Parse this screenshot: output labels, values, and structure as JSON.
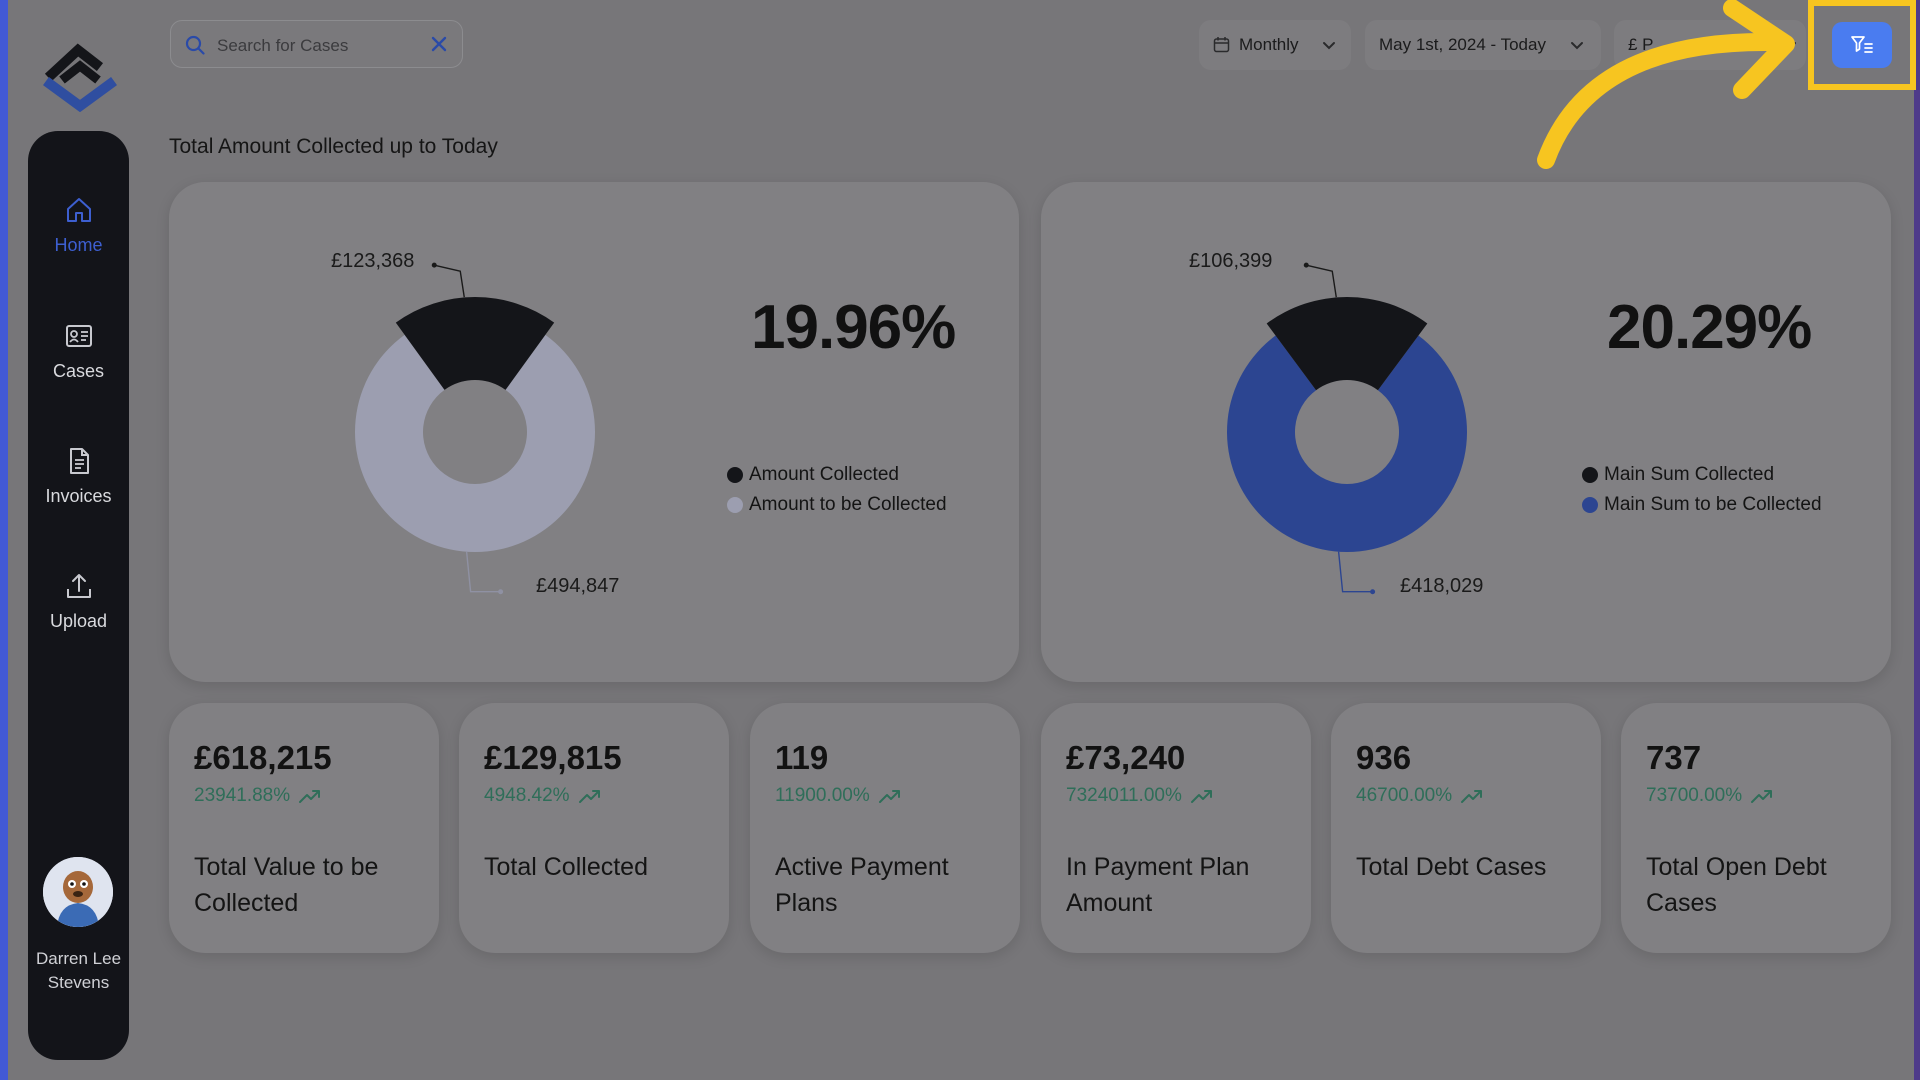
{
  "sidebar": {
    "items": [
      {
        "label": "Home",
        "icon": "home-icon",
        "active": true
      },
      {
        "label": "Cases",
        "icon": "id-card-icon"
      },
      {
        "label": "Invoices",
        "icon": "document-icon"
      },
      {
        "label": "Upload",
        "icon": "upload-icon"
      }
    ],
    "user": {
      "name": "Darren Lee Stevens"
    }
  },
  "header": {
    "search_placeholder": "Search for Cases",
    "period": "Monthly",
    "date_range": "May 1st, 2024 - Today",
    "currency": "£ P"
  },
  "section_title": "Total Amount Collected up to Today",
  "charts": [
    {
      "percent": "19.96%",
      "top_label": "£123,368",
      "bottom_label": "£494,847",
      "legend": [
        "Amount Collected",
        "Amount to be Collected"
      ],
      "colors": {
        "collected": "#141519",
        "remaining": "#9c9eb0"
      }
    },
    {
      "percent": "20.29%",
      "top_label": "£106,399",
      "bottom_label": "£418,029",
      "legend": [
        "Main Sum Collected",
        "Main Sum to be Collected"
      ],
      "colors": {
        "collected": "#141519",
        "remaining": "#2c4591"
      }
    }
  ],
  "chart_data": [
    {
      "type": "pie",
      "categories": [
        "Amount Collected",
        "Amount to be Collected"
      ],
      "values": [
        123368,
        494847
      ]
    },
    {
      "type": "pie",
      "categories": [
        "Main Sum Collected",
        "Main Sum to be Collected"
      ],
      "values": [
        106399,
        418029
      ]
    }
  ],
  "stats": [
    {
      "value": "£618,215",
      "change": "23941.88%",
      "label": "Total Value to be Collected"
    },
    {
      "value": "£129,815",
      "change": "4948.42%",
      "label": "Total Collected"
    },
    {
      "value": "119",
      "change": "11900.00%",
      "label": "Active Payment Plans"
    },
    {
      "value": "£73,240",
      "change": "7324011.00%",
      "label": "In Payment Plan Amount"
    },
    {
      "value": "936",
      "change": "46700.00%",
      "label": "Total Debt Cases"
    },
    {
      "value": "737",
      "change": "73700.00%",
      "label": "Total Open Debt Cases"
    }
  ],
  "accent_color": "#4a7cf0",
  "highlight_color": "#f7c520"
}
